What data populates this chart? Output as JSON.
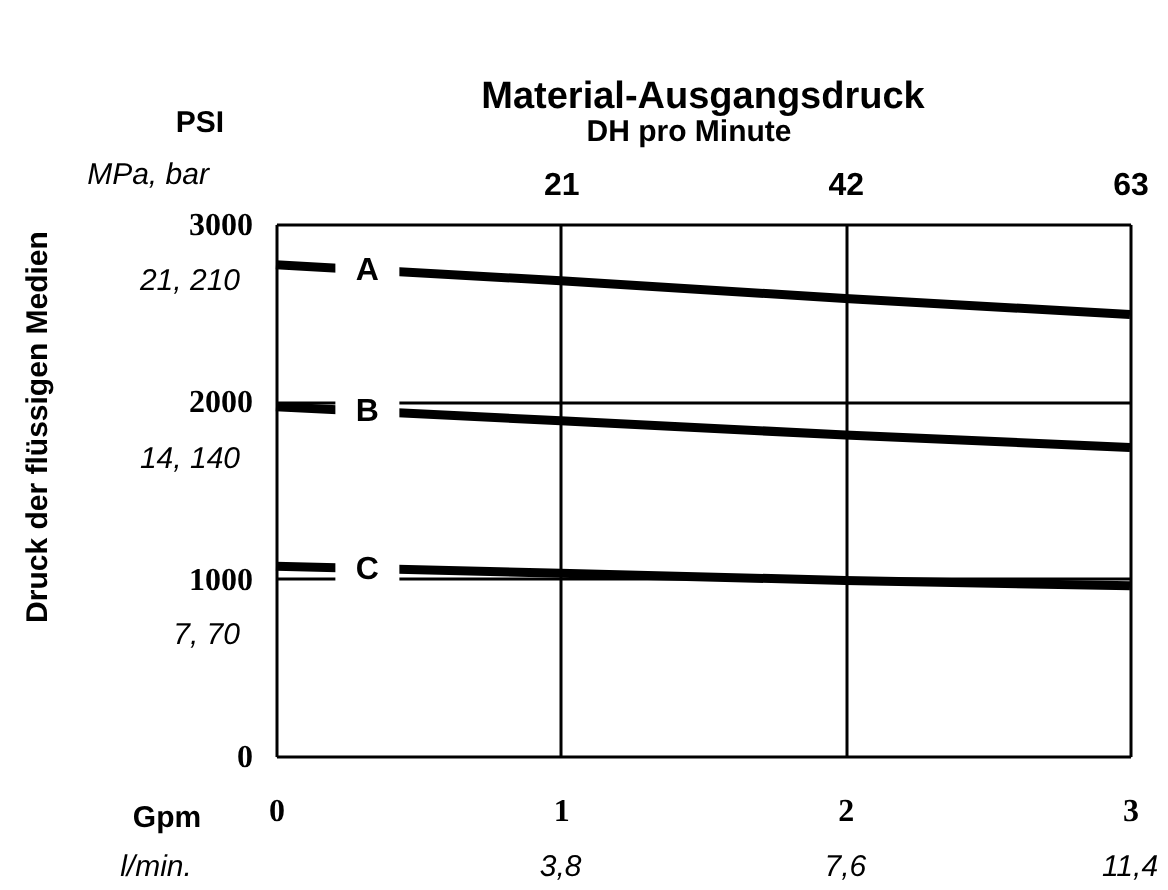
{
  "chart_data": {
    "type": "line",
    "title": "Material-Ausgangsdruck",
    "xlabel": "Gpm",
    "x2label": "DH pro Minute",
    "ylabel": "Druck der flüssigen Medien",
    "annotations": [
      "PSI",
      "MPa, bar",
      "21, 210",
      "14, 140",
      "7, 70",
      "l/min.",
      "3,8",
      "7,6",
      "11,4"
    ],
    "x": [
      0,
      1,
      2,
      3
    ],
    "series": [
      {
        "name": "A",
        "color": "#000000",
        "values": [
          2770,
          2680,
          2580,
          2490
        ]
      },
      {
        "name": "B",
        "color": "#000000",
        "values": [
          1970,
          1890,
          1810,
          1740
        ]
      },
      {
        "name": "C",
        "color": "#000000",
        "values": [
          1070,
          1030,
          990,
          960
        ]
      }
    ],
    "xlim": [
      0,
      3
    ],
    "xticks": [
      0,
      1,
      2,
      3
    ],
    "x2lim": [
      0,
      63
    ],
    "x2ticks": [
      21,
      42,
      63
    ],
    "ylim": [
      0,
      3000
    ],
    "yticks": [
      0,
      1000,
      2000,
      3000
    ],
    "grid": true,
    "line_style": "solid"
  }
}
